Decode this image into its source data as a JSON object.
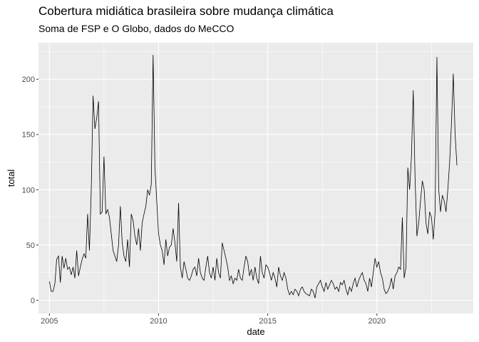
{
  "chart_data": {
    "type": "line",
    "title": "Cobertura midiática brasileira sobre mudança climática",
    "subtitle": "Soma de FSP e O Globo, dados do MeCCO",
    "xlabel": "date",
    "ylabel": "total",
    "x_ticks": [
      "2005",
      "2010",
      "2015",
      "2020"
    ],
    "y_ticks": [
      "0",
      "50",
      "100",
      "150",
      "200"
    ],
    "xlim": [
      "2004-07-01",
      "2024-06-01"
    ],
    "ylim": [
      -12,
      233
    ],
    "grid": true,
    "series": [
      {
        "x": [
          "2005-01",
          "2005-02",
          "2005-03",
          "2005-04",
          "2005-05",
          "2005-06",
          "2005-07",
          "2005-08",
          "2005-09",
          "2005-10",
          "2005-11",
          "2005-12",
          "2006-01",
          "2006-02",
          "2006-03",
          "2006-04",
          "2006-05",
          "2006-06",
          "2006-07",
          "2006-08",
          "2006-09",
          "2006-10",
          "2006-11",
          "2006-12",
          "2007-01",
          "2007-02",
          "2007-03",
          "2007-04",
          "2007-05",
          "2007-06",
          "2007-07",
          "2007-08",
          "2007-09",
          "2007-10",
          "2007-11",
          "2007-12",
          "2008-01",
          "2008-02",
          "2008-03",
          "2008-04",
          "2008-05",
          "2008-06",
          "2008-07",
          "2008-08",
          "2008-09",
          "2008-10",
          "2008-11",
          "2008-12",
          "2009-01",
          "2009-02",
          "2009-03",
          "2009-04",
          "2009-05",
          "2009-06",
          "2009-07",
          "2009-08",
          "2009-09",
          "2009-10",
          "2009-11",
          "2009-12",
          "2010-01",
          "2010-02",
          "2010-03",
          "2010-04",
          "2010-05",
          "2010-06",
          "2010-07",
          "2010-08",
          "2010-09",
          "2010-10",
          "2010-11",
          "2010-12",
          "2011-01",
          "2011-02",
          "2011-03",
          "2011-04",
          "2011-05",
          "2011-06",
          "2011-07",
          "2011-08",
          "2011-09",
          "2011-10",
          "2011-11",
          "2011-12",
          "2012-01",
          "2012-02",
          "2012-03",
          "2012-04",
          "2012-05",
          "2012-06",
          "2012-07",
          "2012-08",
          "2012-09",
          "2012-10",
          "2012-11",
          "2012-12",
          "2013-01",
          "2013-02",
          "2013-03",
          "2013-04",
          "2013-05",
          "2013-06",
          "2013-07",
          "2013-08",
          "2013-09",
          "2013-10",
          "2013-11",
          "2013-12",
          "2014-01",
          "2014-02",
          "2014-03",
          "2014-04",
          "2014-05",
          "2014-06",
          "2014-07",
          "2014-08",
          "2014-09",
          "2014-10",
          "2014-11",
          "2014-12",
          "2015-01",
          "2015-02",
          "2015-03",
          "2015-04",
          "2015-05",
          "2015-06",
          "2015-07",
          "2015-08",
          "2015-09",
          "2015-10",
          "2015-11",
          "2015-12",
          "2016-01",
          "2016-02",
          "2016-03",
          "2016-04",
          "2016-05",
          "2016-06",
          "2016-07",
          "2016-08",
          "2016-09",
          "2016-10",
          "2016-11",
          "2016-12",
          "2017-01",
          "2017-02",
          "2017-03",
          "2017-04",
          "2017-05",
          "2017-06",
          "2017-07",
          "2017-08",
          "2017-09",
          "2017-10",
          "2017-11",
          "2017-12",
          "2018-01",
          "2018-02",
          "2018-03",
          "2018-04",
          "2018-05",
          "2018-06",
          "2018-07",
          "2018-08",
          "2018-09",
          "2018-10",
          "2018-11",
          "2018-12",
          "2019-01",
          "2019-02",
          "2019-03",
          "2019-04",
          "2019-05",
          "2019-06",
          "2019-07",
          "2019-08",
          "2019-09",
          "2019-10",
          "2019-11",
          "2019-12",
          "2020-01",
          "2020-02",
          "2020-03",
          "2020-04",
          "2020-05",
          "2020-06",
          "2020-07",
          "2020-08",
          "2020-09",
          "2020-10",
          "2020-11",
          "2020-12",
          "2021-01",
          "2021-02",
          "2021-03",
          "2021-04",
          "2021-05",
          "2021-06",
          "2021-07",
          "2021-08",
          "2021-09",
          "2021-10",
          "2021-11",
          "2021-12",
          "2022-01",
          "2022-02",
          "2022-03",
          "2022-04",
          "2022-05",
          "2022-06",
          "2022-07",
          "2022-08",
          "2022-09",
          "2022-10",
          "2022-11",
          "2022-12",
          "2023-01",
          "2023-02",
          "2023-03",
          "2023-04",
          "2023-05",
          "2023-06",
          "2023-07",
          "2023-08",
          "2023-09"
        ],
        "y": [
          17,
          8,
          8,
          15,
          37,
          40,
          16,
          40,
          29,
          38,
          28,
          30,
          23,
          30,
          20,
          45,
          22,
          30,
          37,
          42,
          38,
          78,
          45,
          100,
          185,
          155,
          165,
          180,
          78,
          80,
          130,
          78,
          82,
          75,
          60,
          45,
          40,
          35,
          50,
          85,
          52,
          40,
          35,
          55,
          30,
          78,
          72,
          58,
          50,
          65,
          45,
          70,
          78,
          85,
          100,
          95,
          105,
          222,
          120,
          90,
          60,
          50,
          45,
          32,
          55,
          40,
          48,
          50,
          65,
          52,
          35,
          88,
          30,
          20,
          35,
          28,
          20,
          18,
          22,
          28,
          30,
          22,
          38,
          25,
          20,
          18,
          30,
          40,
          25,
          20,
          30,
          18,
          38,
          25,
          20,
          52,
          45,
          38,
          30,
          18,
          22,
          15,
          20,
          18,
          28,
          20,
          18,
          30,
          40,
          35,
          22,
          28,
          18,
          30,
          20,
          15,
          40,
          25,
          20,
          32,
          30,
          25,
          18,
          25,
          20,
          12,
          30,
          22,
          18,
          25,
          20,
          10,
          5,
          8,
          5,
          10,
          8,
          4,
          10,
          12,
          8,
          6,
          5,
          4,
          10,
          8,
          2,
          12,
          15,
          18,
          12,
          8,
          16,
          10,
          14,
          18,
          15,
          10,
          12,
          8,
          16,
          14,
          18,
          10,
          5,
          12,
          8,
          15,
          20,
          12,
          18,
          22,
          25,
          18,
          15,
          8,
          20,
          12,
          25,
          38,
          30,
          35,
          25,
          20,
          10,
          6,
          8,
          12,
          20,
          10,
          22,
          25,
          30,
          28,
          75,
          20,
          30,
          120,
          100,
          130,
          190,
          110,
          58,
          70,
          90,
          108,
          100,
          70,
          60,
          80,
          75,
          55,
          80,
          220,
          100,
          80,
          95,
          90,
          80,
          100,
          125,
          160,
          205,
          150,
          122
        ]
      }
    ]
  }
}
